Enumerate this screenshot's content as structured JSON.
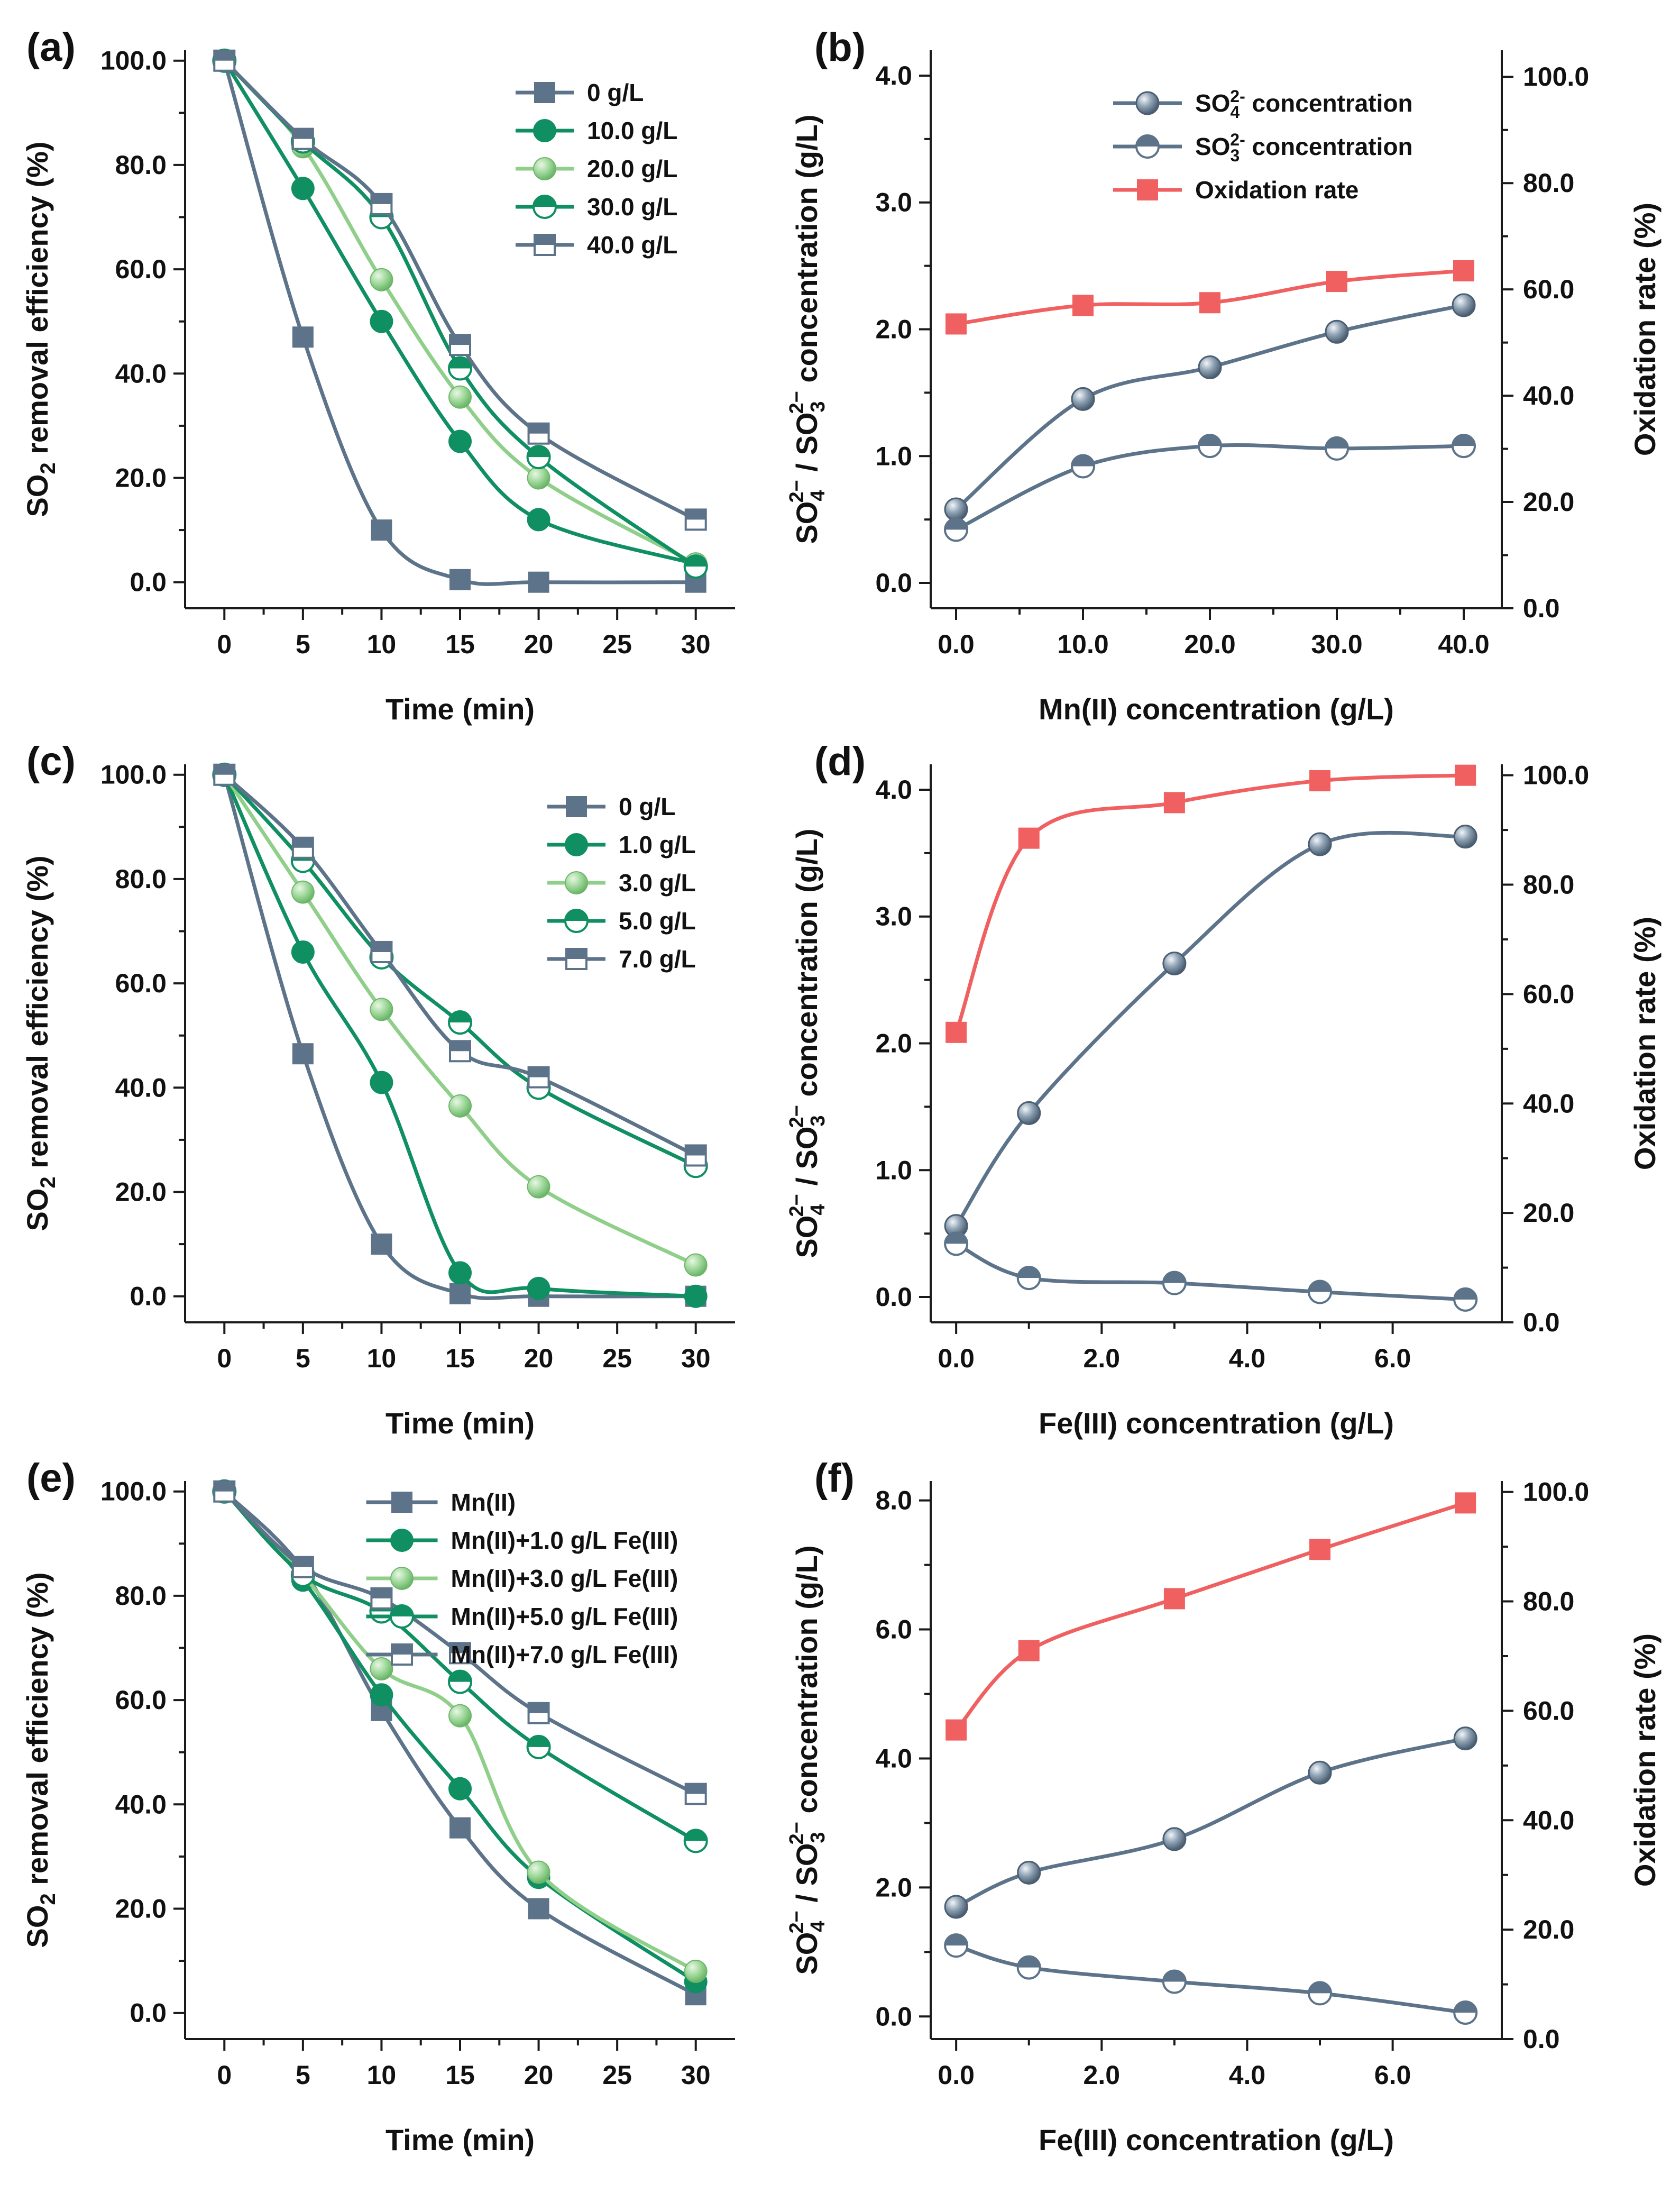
{
  "figure": {
    "colors": {
      "slate": "#5c7389",
      "green": "#0f8f62",
      "light_green": "#8fcf8a",
      "red": "#f06060",
      "marker_edge": "#4b5e72"
    }
  },
  "chart_data": [
    {
      "id": "a",
      "tag": "(a)",
      "type": "line",
      "xlabel": "Time (min)",
      "ylabel": "SO2 removal efficiency (%)",
      "x_positions": [
        0,
        1,
        2,
        3,
        4,
        5,
        6
      ],
      "x_tick_labels": [
        "0",
        "5",
        "10",
        "15",
        "20",
        "25",
        "30"
      ],
      "xlim": [
        -0.5,
        6.5
      ],
      "ylim": [
        -5,
        102
      ],
      "y_ticks": [
        0,
        20,
        40,
        60,
        80,
        100
      ],
      "y_tick_labels": [
        "0.0",
        "20.0",
        "40.0",
        "60.0",
        "80.0",
        "100.0"
      ],
      "legend_position": "top-right",
      "series": [
        {
          "name": "0 g/L",
          "marker": "square",
          "color": "#5c7389",
          "x": [
            0,
            1,
            2,
            3,
            4,
            6
          ],
          "values": [
            100,
            47,
            10,
            0.5,
            0,
            0
          ]
        },
        {
          "name": "10.0  g/L",
          "marker": "circle",
          "color": "#0f8f62",
          "x": [
            0,
            1,
            2,
            3,
            4,
            6
          ],
          "values": [
            100,
            75.5,
            50,
            27,
            12,
            3.5
          ]
        },
        {
          "name": "20.0  g/L",
          "marker": "circle-shaded",
          "color": "#8fcf8a",
          "x": [
            0,
            1,
            2,
            3,
            4,
            6
          ],
          "values": [
            100,
            83.5,
            58,
            35.5,
            20,
            3.5
          ]
        },
        {
          "name": "30.0  g/L",
          "marker": "circle-half",
          "color": "#0f8f62",
          "x": [
            0,
            1,
            2,
            3,
            4,
            6
          ],
          "values": [
            100,
            84.5,
            70,
            41,
            24,
            3
          ]
        },
        {
          "name": "40.0  g/L",
          "marker": "square-half",
          "color": "#5c7389",
          "x": [
            0,
            1,
            2,
            3,
            4,
            6
          ],
          "values": [
            100,
            85,
            72.5,
            45.5,
            28.5,
            12
          ]
        }
      ]
    },
    {
      "id": "b",
      "tag": "(b)",
      "type": "line",
      "dual_axis": true,
      "xlabel": "Mn(II) concentration (g/L)",
      "ylabel": "SO42− / SO32− concentration (g/L)",
      "y2label": "Oxidation rate (%)",
      "x_positions": [
        0,
        10,
        20,
        30,
        40
      ],
      "x_tick_labels": [
        "0.0",
        "10.0",
        "20.0",
        "30.0",
        "40.0"
      ],
      "xlim": [
        -2,
        43
      ],
      "ylim": [
        -0.2,
        4.2
      ],
      "y_ticks": [
        0,
        1,
        2,
        3,
        4
      ],
      "y_tick_labels": [
        "0.0",
        "1.0",
        "2.0",
        "3.0",
        "4.0"
      ],
      "y2lim": [
        0,
        105
      ],
      "y2_ticks": [
        0,
        20,
        40,
        60,
        80,
        100
      ],
      "y2_tick_labels": [
        "0.0",
        "20.0",
        "40.0",
        "60.0",
        "80.0",
        "100.0"
      ],
      "legend_position": "top-right",
      "series": [
        {
          "name": "SO42- concentration",
          "label_base": "SO",
          "label_sub": "4",
          "label_sup": "2-",
          "label_rest": " concentration",
          "axis": "left",
          "marker": "sphere",
          "color": "#5c7389",
          "x": [
            0,
            10,
            20,
            30,
            40
          ],
          "values": [
            0.58,
            1.45,
            1.7,
            1.98,
            2.19
          ]
        },
        {
          "name": "SO32- concentration",
          "label_base": "SO",
          "label_sub": "3",
          "label_sup": "2-",
          "label_rest": " concentration",
          "axis": "left",
          "marker": "circle-half",
          "color": "#5c7389",
          "x": [
            0,
            10,
            20,
            30,
            40
          ],
          "values": [
            0.42,
            0.92,
            1.08,
            1.06,
            1.08
          ]
        },
        {
          "name": "Oxidation rate",
          "label_base": "Oxidation rate",
          "axis": "right",
          "marker": "square",
          "color": "#f06060",
          "x": [
            0,
            10,
            20,
            30,
            40
          ],
          "values": [
            53.5,
            57,
            57.5,
            61.5,
            63.5
          ]
        }
      ]
    },
    {
      "id": "c",
      "tag": "(c)",
      "type": "line",
      "xlabel": "Time (min)",
      "ylabel": "SO2 removal efficiency (%)",
      "x_positions": [
        0,
        1,
        2,
        3,
        4,
        5,
        6
      ],
      "x_tick_labels": [
        "0",
        "5",
        "10",
        "15",
        "20",
        "25",
        "30"
      ],
      "xlim": [
        -0.5,
        6.5
      ],
      "ylim": [
        -5,
        102
      ],
      "y_ticks": [
        0,
        20,
        40,
        60,
        80,
        100
      ],
      "y_tick_labels": [
        "0.0",
        "20.0",
        "40.0",
        "60.0",
        "80.0",
        "100.0"
      ],
      "legend_position": "top-right",
      "series": [
        {
          "name": "0 g/L",
          "marker": "square",
          "color": "#5c7389",
          "x": [
            0,
            1,
            2,
            3,
            4,
            6
          ],
          "values": [
            100,
            46.5,
            10,
            0.5,
            0,
            0
          ]
        },
        {
          "name": "1.0 g/L",
          "marker": "circle",
          "color": "#0f8f62",
          "x": [
            0,
            1,
            2,
            3,
            4,
            6
          ],
          "values": [
            100,
            66,
            41,
            4.5,
            1.5,
            0
          ]
        },
        {
          "name": "3.0 g/L",
          "marker": "circle-shaded",
          "color": "#8fcf8a",
          "x": [
            0,
            1,
            2,
            3,
            4,
            6
          ],
          "values": [
            100,
            77.5,
            55,
            36.5,
            21,
            6
          ]
        },
        {
          "name": "5.0 g/L",
          "marker": "circle-half",
          "color": "#0f8f62",
          "x": [
            0,
            1,
            2,
            3,
            4,
            6
          ],
          "values": [
            100,
            83.5,
            65,
            52.5,
            40,
            25
          ]
        },
        {
          "name": "7.0 g/L",
          "marker": "square-half",
          "color": "#5c7389",
          "x": [
            0,
            1,
            2,
            3,
            4,
            6
          ],
          "values": [
            100,
            86,
            66,
            47,
            42,
            27
          ]
        }
      ]
    },
    {
      "id": "d",
      "tag": "(d)",
      "type": "line",
      "dual_axis": true,
      "xlabel": "Fe(III) concentration (g/L)",
      "ylabel": "SO42− / SO32− concentration (g/L)",
      "y2label": "Oxidation rate (%)",
      "x_positions": [
        0,
        2,
        4,
        6
      ],
      "x_tick_labels": [
        "0.0",
        "2.0",
        "4.0",
        "6.0"
      ],
      "xlim": [
        -0.35,
        7.5
      ],
      "ylim": [
        -0.2,
        4.2
      ],
      "y_ticks": [
        0,
        1,
        2,
        3,
        4
      ],
      "y_tick_labels": [
        "0.0",
        "1.0",
        "2.0",
        "3.0",
        "4.0"
      ],
      "y2lim": [
        0,
        102
      ],
      "y2_ticks": [
        0,
        20,
        40,
        60,
        80,
        100
      ],
      "y2_tick_labels": [
        "0.0",
        "20.0",
        "40.0",
        "60.0",
        "80.0",
        "100.0"
      ],
      "series": [
        {
          "name": "SO42- concentration",
          "axis": "left",
          "marker": "sphere",
          "color": "#5c7389",
          "x": [
            0,
            1,
            3,
            5,
            7
          ],
          "values": [
            0.56,
            1.45,
            2.63,
            3.57,
            3.63
          ]
        },
        {
          "name": "SO32- concentration",
          "axis": "left",
          "marker": "circle-half",
          "color": "#5c7389",
          "x": [
            0,
            1,
            3,
            5,
            7
          ],
          "values": [
            0.42,
            0.15,
            0.11,
            0.04,
            -0.02
          ]
        },
        {
          "name": "Oxidation rate",
          "axis": "right",
          "marker": "square",
          "color": "#f06060",
          "x": [
            0,
            1,
            3,
            5,
            7
          ],
          "values": [
            53,
            88.5,
            95,
            99,
            100
          ]
        }
      ]
    },
    {
      "id": "e",
      "tag": "(e)",
      "type": "line",
      "xlabel": "Time (min)",
      "ylabel": "SO2 removal efficiency (%)",
      "x_positions": [
        0,
        1,
        2,
        3,
        4,
        5,
        6
      ],
      "x_tick_labels": [
        "0",
        "5",
        "10",
        "15",
        "20",
        "25",
        "30"
      ],
      "xlim": [
        -0.5,
        6.5
      ],
      "ylim": [
        -5,
        102
      ],
      "y_ticks": [
        0,
        20,
        40,
        60,
        80,
        100
      ],
      "y_tick_labels": [
        "0.0",
        "20.0",
        "40.0",
        "60.0",
        "80.0",
        "100.0"
      ],
      "legend_position": "top-right",
      "series": [
        {
          "name": "Mn(II)",
          "marker": "square",
          "color": "#5c7389",
          "x": [
            0,
            1,
            2,
            3,
            4,
            6
          ],
          "values": [
            100,
            85,
            58,
            35.5,
            20,
            3.5
          ]
        },
        {
          "name": "Mn(II)+1.0 g/L Fe(III)",
          "marker": "circle",
          "color": "#0f8f62",
          "x": [
            0,
            1,
            2,
            3,
            4,
            6
          ],
          "values": [
            100,
            83,
            61,
            43,
            26,
            6
          ]
        },
        {
          "name": "Mn(II)+3.0 g/L Fe(III)",
          "marker": "circle-shaded",
          "color": "#8fcf8a",
          "x": [
            0,
            1,
            2,
            3,
            4,
            6
          ],
          "values": [
            100,
            84,
            66,
            57,
            27,
            8
          ]
        },
        {
          "name": "Mn(II)+5.0 g/L Fe(III)",
          "marker": "circle-half",
          "color": "#0f8f62",
          "x": [
            0,
            1,
            2,
            3,
            4,
            6
          ],
          "values": [
            100,
            84,
            77,
            63.5,
            51,
            33
          ]
        },
        {
          "name": "Mn(II)+7.0 g/L Fe(III)",
          "marker": "square-half",
          "color": "#5c7389",
          "x": [
            0,
            1,
            2,
            3,
            4,
            6
          ],
          "values": [
            100,
            85.5,
            79.5,
            69,
            57.5,
            42
          ]
        }
      ]
    },
    {
      "id": "f",
      "tag": "(f)",
      "type": "line",
      "dual_axis": true,
      "xlabel": "Fe(III) concentration (g/L)",
      "ylabel": "SO42− / SO32− concentration (g/L)",
      "y2label": "Oxidation rate (%)",
      "x_positions": [
        0,
        2,
        4,
        6
      ],
      "x_tick_labels": [
        "0.0",
        "2.0",
        "4.0",
        "6.0"
      ],
      "xlim": [
        -0.35,
        7.5
      ],
      "ylim": [
        -0.35,
        8.3
      ],
      "y_ticks": [
        0,
        2,
        4,
        6,
        8
      ],
      "y_tick_labels": [
        "0.0",
        "2.0",
        "4.0",
        "6.0",
        "8.0"
      ],
      "y2lim": [
        0,
        102
      ],
      "y2_ticks": [
        0,
        20,
        40,
        60,
        80,
        100
      ],
      "y2_tick_labels": [
        "0.0",
        "20.0",
        "40.0",
        "60.0",
        "80.0",
        "100.0"
      ],
      "series": [
        {
          "name": "SO42- concentration",
          "axis": "left",
          "marker": "sphere",
          "color": "#5c7389",
          "x": [
            0,
            1,
            3,
            5,
            7
          ],
          "values": [
            1.7,
            2.23,
            2.75,
            3.78,
            4.31
          ]
        },
        {
          "name": "SO32- concentration",
          "axis": "left",
          "marker": "circle-half",
          "color": "#5c7389",
          "x": [
            0,
            1,
            3,
            5,
            7
          ],
          "values": [
            1.1,
            0.76,
            0.54,
            0.36,
            0.06
          ]
        },
        {
          "name": "Oxidation rate",
          "axis": "right",
          "marker": "square",
          "color": "#f06060",
          "x": [
            0,
            1,
            3,
            5,
            7
          ],
          "values": [
            56.5,
            71,
            80.5,
            89.5,
            98
          ]
        }
      ]
    }
  ]
}
